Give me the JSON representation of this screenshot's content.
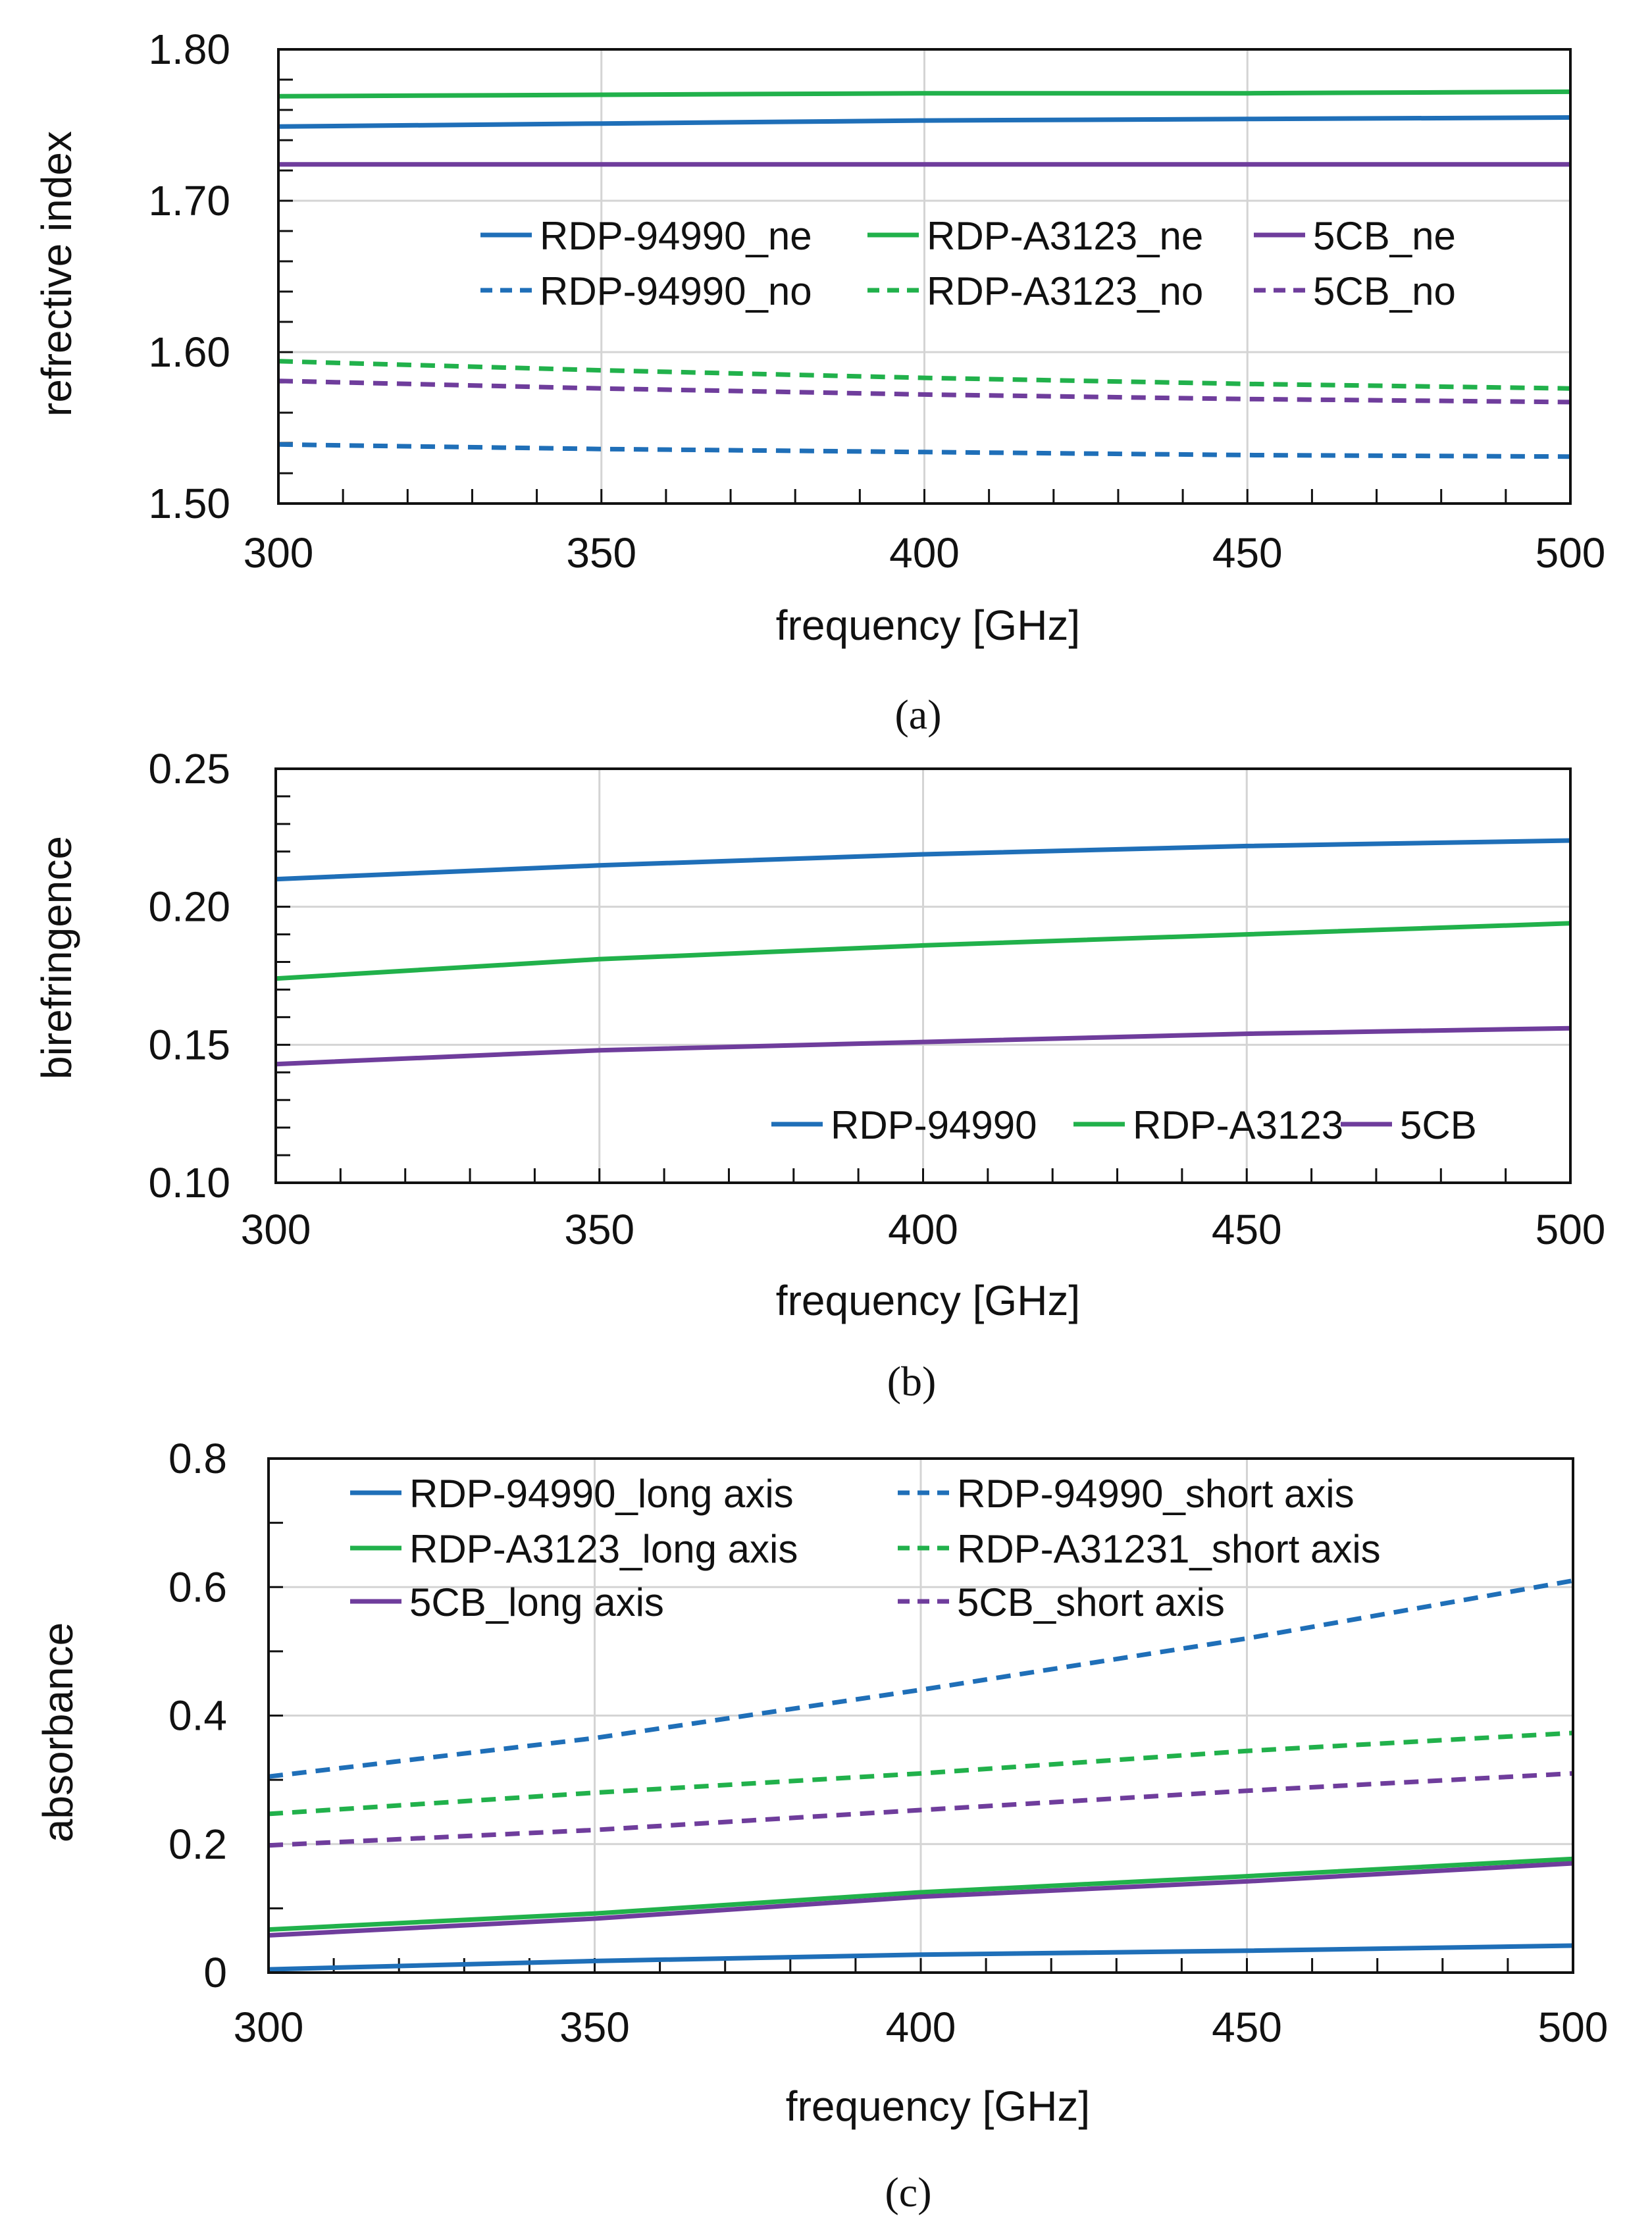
{
  "colors": {
    "blue": "#1f6fb8",
    "green": "#21b14b",
    "purple": "#6f3d9c",
    "grid": "#d4d4d4",
    "axis": "#111111"
  },
  "chart_data": [
    {
      "type": "line",
      "caption": "(a)",
      "xlabel": "frequency [GHz]",
      "ylabel": "refrective index",
      "xlim": [
        300,
        500
      ],
      "ylim": [
        1.5,
        1.8
      ],
      "xticks": [
        300,
        350,
        400,
        450,
        500
      ],
      "xtick_labels": [
        "300",
        "350",
        "400",
        "450",
        "500"
      ],
      "yticks": [
        1.5,
        1.6,
        1.7,
        1.8
      ],
      "ytick_labels": [
        "1.50",
        "1.60",
        "1.70",
        "1.80"
      ],
      "x_minor_step": 10,
      "y_minor_step": 0.02,
      "grid": true,
      "legend_position": "center-right, upper",
      "legend_columns": 3,
      "series": [
        {
          "name": "RDP-94990_ne",
          "color": "blue",
          "dash": false,
          "x": [
            300,
            350,
            400,
            450,
            500
          ],
          "values": [
            1.749,
            1.751,
            1.753,
            1.754,
            1.755
          ]
        },
        {
          "name": "RDP-A3123_ne",
          "color": "green",
          "dash": false,
          "x": [
            300,
            350,
            400,
            450,
            500
          ],
          "values": [
            1.769,
            1.77,
            1.771,
            1.771,
            1.772
          ]
        },
        {
          "name": "5CB_ne",
          "color": "purple",
          "dash": false,
          "x": [
            300,
            350,
            400,
            450,
            500
          ],
          "values": [
            1.724,
            1.724,
            1.724,
            1.724,
            1.724
          ]
        },
        {
          "name": "RDP-94990_no",
          "color": "blue",
          "dash": true,
          "x": [
            300,
            350,
            400,
            450,
            500
          ],
          "values": [
            1.539,
            1.536,
            1.534,
            1.532,
            1.531
          ]
        },
        {
          "name": "RDP-A3123_no",
          "color": "green",
          "dash": true,
          "x": [
            300,
            350,
            400,
            450,
            500
          ],
          "values": [
            1.594,
            1.588,
            1.583,
            1.579,
            1.576
          ]
        },
        {
          "name": "5CB_no",
          "color": "purple",
          "dash": true,
          "x": [
            300,
            350,
            400,
            450,
            500
          ],
          "values": [
            1.581,
            1.576,
            1.572,
            1.569,
            1.567
          ]
        }
      ]
    },
    {
      "type": "line",
      "caption": "(b)",
      "xlabel": "frequency [GHz]",
      "ylabel": "birefringence",
      "xlim": [
        300,
        500
      ],
      "ylim": [
        0.1,
        0.25
      ],
      "xticks": [
        300,
        350,
        400,
        450,
        500
      ],
      "xtick_labels": [
        "300",
        "350",
        "400",
        "450",
        "500"
      ],
      "yticks": [
        0.1,
        0.15,
        0.2,
        0.25
      ],
      "ytick_labels": [
        "0.10",
        "0.15",
        "0.20",
        "0.25"
      ],
      "x_minor_step": 10,
      "y_minor_step": 0.01,
      "grid": true,
      "legend_position": "bottom-right",
      "legend_columns": 3,
      "series": [
        {
          "name": "RDP-94990",
          "color": "blue",
          "dash": false,
          "x": [
            300,
            350,
            400,
            450,
            500
          ],
          "values": [
            0.21,
            0.215,
            0.219,
            0.222,
            0.224
          ]
        },
        {
          "name": "RDP-A3123",
          "color": "green",
          "dash": false,
          "x": [
            300,
            350,
            400,
            450,
            500
          ],
          "values": [
            0.174,
            0.181,
            0.186,
            0.19,
            0.194
          ]
        },
        {
          "name": "5CB",
          "color": "purple",
          "dash": false,
          "x": [
            300,
            350,
            400,
            450,
            500
          ],
          "values": [
            0.143,
            0.148,
            0.151,
            0.154,
            0.156
          ]
        }
      ]
    },
    {
      "type": "line",
      "caption": "(c)",
      "xlabel": "frequency [GHz]",
      "ylabel": "absorbance",
      "xlim": [
        300,
        500
      ],
      "ylim": [
        0,
        0.8
      ],
      "xticks": [
        300,
        350,
        400,
        450,
        500
      ],
      "xtick_labels": [
        "300",
        "350",
        "400",
        "450",
        "500"
      ],
      "yticks": [
        0,
        0.2,
        0.4,
        0.6,
        0.8
      ],
      "ytick_labels": [
        "0",
        "0.2",
        "0.4",
        "0.6",
        "0.8"
      ],
      "x_minor_step": 10,
      "y_minor_step": 0.1,
      "grid": true,
      "legend_position": "top-left",
      "legend_columns": 2,
      "series": [
        {
          "name": "RDP-94990_long axis",
          "color": "blue",
          "dash": false,
          "x": [
            300,
            350,
            400,
            450,
            500
          ],
          "values": [
            0.005,
            0.018,
            0.028,
            0.034,
            0.042
          ]
        },
        {
          "name": "RDP-94990_short axis",
          "color": "blue",
          "dash": true,
          "x": [
            300,
            350,
            400,
            450,
            500
          ],
          "values": [
            0.305,
            0.365,
            0.44,
            0.52,
            0.61
          ]
        },
        {
          "name": "RDP-A3123_long axis",
          "color": "green",
          "dash": false,
          "x": [
            300,
            350,
            400,
            450,
            500
          ],
          "values": [
            0.067,
            0.092,
            0.125,
            0.15,
            0.177
          ]
        },
        {
          "name": "RDP-A31231_short axis",
          "color": "green",
          "dash": true,
          "x": [
            300,
            350,
            400,
            450,
            500
          ],
          "values": [
            0.247,
            0.28,
            0.31,
            0.345,
            0.373
          ]
        },
        {
          "name": "5CB_long axis",
          "color": "purple",
          "dash": false,
          "x": [
            300,
            350,
            400,
            450,
            500
          ],
          "values": [
            0.058,
            0.084,
            0.118,
            0.142,
            0.17
          ]
        },
        {
          "name": "5CB_short axis",
          "color": "purple",
          "dash": true,
          "x": [
            300,
            350,
            400,
            450,
            500
          ],
          "values": [
            0.198,
            0.222,
            0.253,
            0.283,
            0.31
          ]
        }
      ]
    }
  ]
}
